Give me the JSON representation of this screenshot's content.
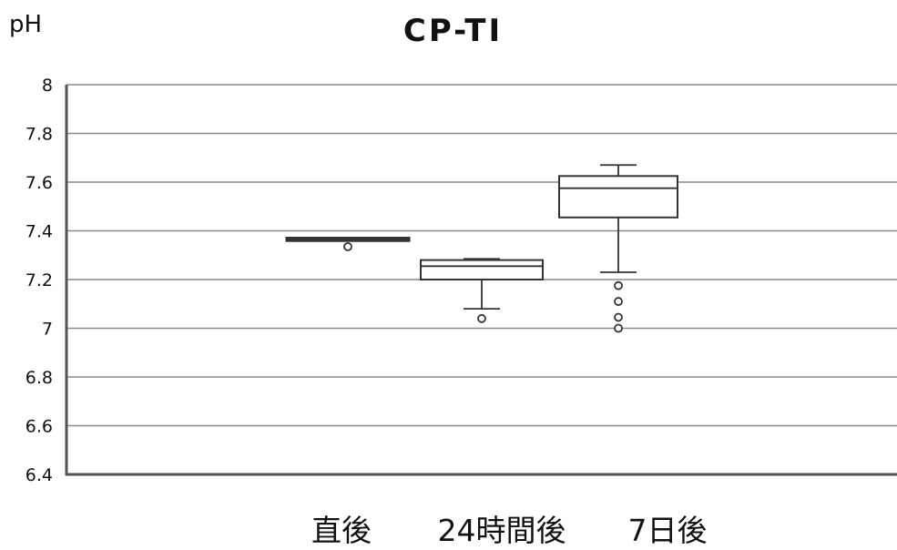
{
  "chart_data": {
    "type": "box",
    "title": "CP-TI",
    "ylabel": "pH",
    "xlabel": "",
    "ylim": [
      6.4,
      8.0
    ],
    "yticks": [
      "8",
      "7.8",
      "7.6",
      "7.4",
      "7.2",
      "7",
      "6.8",
      "6.6",
      "6.4"
    ],
    "grid": true,
    "categories": [
      "直後",
      "24時間後",
      "7日後"
    ],
    "boxes": [
      {
        "category": "直後",
        "whisker_low": 7.36,
        "q1": 7.36,
        "median": 7.365,
        "q3": 7.37,
        "whisker_high": 7.37,
        "outliers": [
          7.335
        ]
      },
      {
        "category": "24時間後",
        "whisker_low": 7.08,
        "q1": 7.2,
        "median": 7.255,
        "q3": 7.28,
        "whisker_high": 7.285,
        "outliers": [
          7.04
        ]
      },
      {
        "category": "7日後",
        "whisker_low": 7.23,
        "q1": 7.455,
        "median": 7.575,
        "q3": 7.625,
        "whisker_high": 7.67,
        "outliers": [
          7.175,
          7.11,
          7.045,
          7.0
        ]
      }
    ]
  }
}
